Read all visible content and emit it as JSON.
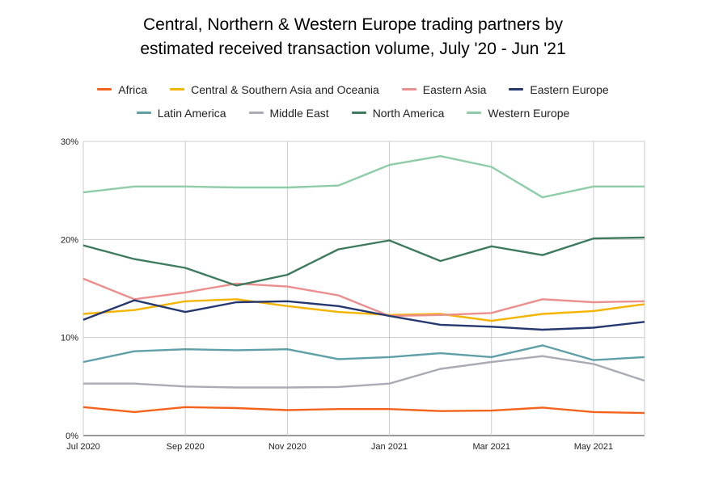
{
  "chart_data": {
    "type": "line",
    "title": "Central, Northern & Western Europe trading partners by\nestimated received transaction volume, July '20 - Jun '21",
    "xlabel": "",
    "ylabel": "",
    "ylim": [
      0,
      30
    ],
    "grid": true,
    "legend_position": "top",
    "x": [
      "Jul 2020",
      "Aug 2020",
      "Sep 2020",
      "Oct 2020",
      "Nov 2020",
      "Dec 2020",
      "Jan 2021",
      "Feb 2021",
      "Mar 2021",
      "Apr 2021",
      "May 2021",
      "Jun 2021"
    ],
    "x_tick_labels": [
      "Jul 2020",
      "Sep 2020",
      "Nov 2020",
      "Jan 2021",
      "Mar 2021",
      "May 2021"
    ],
    "y_tick_labels": [
      "0%",
      "10%",
      "20%",
      "30%"
    ],
    "y_ticks": [
      0,
      10,
      20,
      30
    ],
    "series": [
      {
        "name": "Africa",
        "color": "#f4631b",
        "values": [
          2.9,
          2.4,
          2.9,
          2.8,
          2.6,
          2.7,
          2.7,
          2.5,
          2.55,
          2.85,
          2.4,
          2.3
        ]
      },
      {
        "name": "Central & Southern Asia and Oceania",
        "color": "#f4b400",
        "values": [
          12.4,
          12.8,
          13.7,
          13.9,
          13.2,
          12.6,
          12.3,
          12.4,
          11.7,
          12.4,
          12.7,
          13.4
        ]
      },
      {
        "name": "Eastern Asia",
        "color": "#ec8e8e",
        "values": [
          16.0,
          13.9,
          14.6,
          15.5,
          15.2,
          14.3,
          12.2,
          12.3,
          12.5,
          13.9,
          13.6,
          13.7
        ]
      },
      {
        "name": "Eastern Europe",
        "color": "#263870",
        "values": [
          11.8,
          13.8,
          12.6,
          13.6,
          13.7,
          13.2,
          12.2,
          11.3,
          11.1,
          10.8,
          11.0,
          11.6
        ]
      },
      {
        "name": "Latin America",
        "color": "#5e9fa8",
        "values": [
          7.5,
          8.6,
          8.8,
          8.7,
          8.8,
          7.8,
          8.0,
          8.4,
          8.0,
          9.2,
          7.7,
          8.0
        ]
      },
      {
        "name": "Middle East",
        "color": "#a9abb5",
        "values": [
          5.3,
          5.3,
          5.0,
          4.9,
          4.9,
          4.95,
          5.3,
          6.8,
          7.5,
          8.1,
          7.3,
          5.6
        ]
      },
      {
        "name": "North America",
        "color": "#3e7a5e",
        "values": [
          19.4,
          18.0,
          17.1,
          15.3,
          16.4,
          19.0,
          19.9,
          17.8,
          19.3,
          18.4,
          20.1,
          20.2
        ]
      },
      {
        "name": "Western Europe",
        "color": "#8fcca8",
        "values": [
          24.8,
          25.4,
          25.4,
          25.3,
          25.3,
          25.5,
          27.6,
          28.5,
          27.4,
          24.3,
          25.4,
          25.4
        ]
      }
    ]
  }
}
